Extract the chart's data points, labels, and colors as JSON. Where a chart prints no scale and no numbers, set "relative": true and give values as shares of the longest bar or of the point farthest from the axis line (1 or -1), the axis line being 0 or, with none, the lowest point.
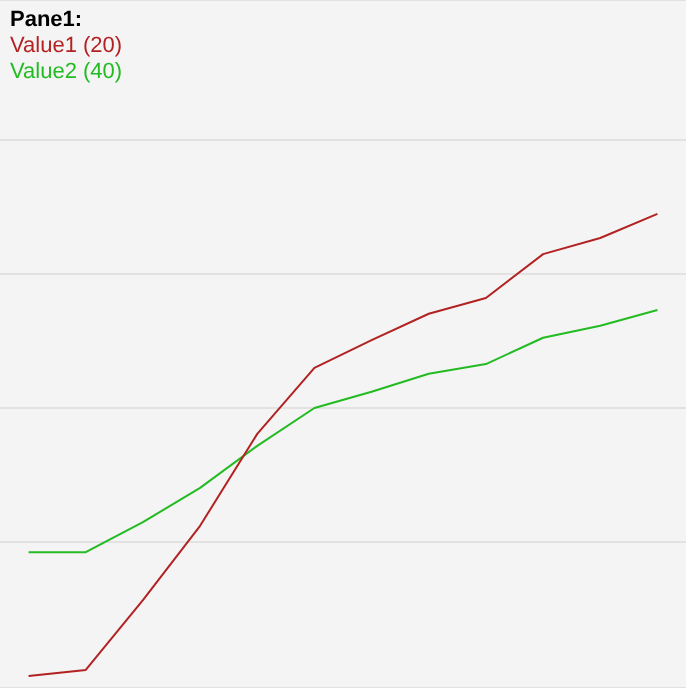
{
  "chart_data": {
    "type": "line",
    "legend_title": "Pane1:",
    "relative": true,
    "grid": "y",
    "legend": "top left",
    "marker": "none",
    "line_style": "solid",
    "categories": [
      null,
      null,
      null,
      null,
      null,
      null,
      null,
      null,
      null,
      null,
      null,
      null
    ],
    "series": [
      {
        "name": "Value1 (20)",
        "color": "#b22222",
        "values": [
          0,
          0.013,
          0.164,
          0.325,
          0.524,
          0.667,
          0.727,
          0.784,
          0.818,
          0.913,
          0.948,
          1
        ]
      },
      {
        "name": "Value2 (40)",
        "color": "#22bb22",
        "values": [
          0.268,
          0.268,
          0.333,
          0.407,
          0.498,
          0.58,
          0.615,
          0.654,
          0.675,
          0.732,
          0.758,
          0.792
        ]
      }
    ]
  }
}
